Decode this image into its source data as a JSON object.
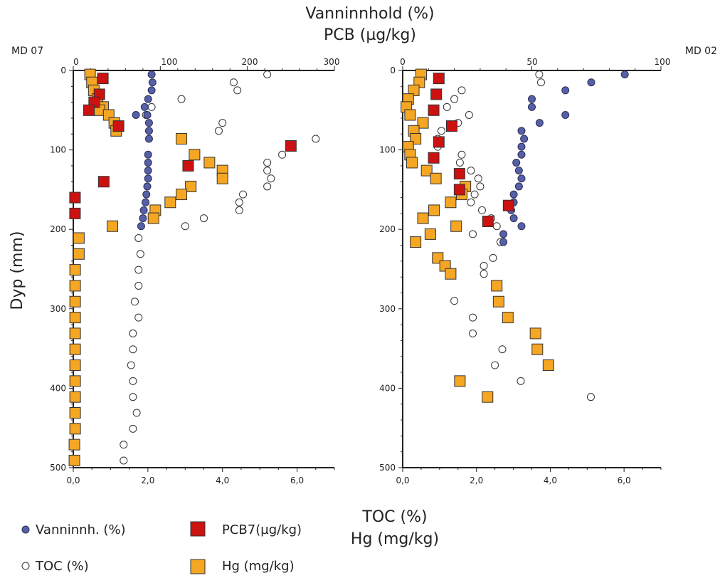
{
  "figure": {
    "top_title_1": "Vanninnhold (%)",
    "top_title_2": "PCB (µg/kg)",
    "bottom_title_1": "TOC (%)",
    "bottom_title_2": "Hg (mg/kg)",
    "ylabel": "Dyp (mm)"
  },
  "legend": [
    {
      "label": "Vanninnh. (%)",
      "marker": "filled-circle",
      "color": "#5560a8"
    },
    {
      "label": "TOC (%)",
      "marker": "open-circle",
      "color": "#ffffff"
    },
    {
      "label": "PCB7(µg/kg)",
      "marker": "square",
      "color": "#cc1111"
    },
    {
      "label": "Hg (mg/kg)",
      "marker": "square",
      "color": "#f5a623"
    }
  ],
  "colors": {
    "vann": "#5560a8",
    "toc": "#ffffff",
    "pcb": "#cc1111",
    "hg": "#f5a623"
  },
  "chart_data": [
    {
      "type": "scatter",
      "site": "MD 07",
      "ylabel": "Dyp (mm)",
      "ylim": [
        500,
        0
      ],
      "y_ticks": [
        "0",
        "100",
        "200",
        "300",
        "400",
        "500"
      ],
      "top_axis": {
        "range": [
          0,
          300
        ],
        "ticks": [
          "0",
          "100",
          "200",
          "300"
        ]
      },
      "bottom_axis": {
        "range": [
          0,
          7
        ],
        "ticks": [
          "0,0",
          "2,0",
          "4,0",
          "6,0"
        ]
      },
      "series": [
        {
          "name": "Vanninnh. (%)",
          "axis": "top",
          "points": [
            [
              90,
              5
            ],
            [
              91,
              15
            ],
            [
              90,
              25
            ],
            [
              86,
              36
            ],
            [
              82,
              46
            ],
            [
              72,
              56
            ],
            [
              85,
              56
            ],
            [
              87,
              66
            ],
            [
              87,
              76
            ],
            [
              87,
              86
            ],
            [
              86,
              106
            ],
            [
              86,
              116
            ],
            [
              86,
              126
            ],
            [
              86,
              136
            ],
            [
              85,
              146
            ],
            [
              84,
              156
            ],
            [
              83,
              166
            ],
            [
              81,
              176
            ],
            [
              80,
              186
            ],
            [
              78,
              196
            ]
          ]
        },
        {
          "name": "TOC (%)",
          "axis": "bottom",
          "points": [
            [
              5.2,
              5
            ],
            [
              4.3,
              15
            ],
            [
              4.4,
              25
            ],
            [
              2.9,
              36
            ],
            [
              2.1,
              46
            ],
            [
              1.95,
              56
            ],
            [
              4.0,
              66
            ],
            [
              3.9,
              76
            ],
            [
              6.5,
              86
            ],
            [
              5.6,
              106
            ],
            [
              5.2,
              116
            ],
            [
              5.2,
              126
            ],
            [
              5.3,
              136
            ],
            [
              5.2,
              146
            ],
            [
              4.55,
              156
            ],
            [
              4.45,
              166
            ],
            [
              4.45,
              176
            ],
            [
              3.5,
              186
            ],
            [
              3.0,
              196
            ],
            [
              1.75,
              211
            ],
            [
              1.8,
              231
            ],
            [
              1.75,
              251
            ],
            [
              1.75,
              271
            ],
            [
              1.65,
              291
            ],
            [
              1.75,
              311
            ],
            [
              1.6,
              331
            ],
            [
              1.6,
              351
            ],
            [
              1.55,
              371
            ],
            [
              1.6,
              391
            ],
            [
              1.6,
              411
            ],
            [
              1.7,
              431
            ],
            [
              1.6,
              451
            ],
            [
              1.35,
              471
            ],
            [
              1.35,
              491
            ]
          ]
        },
        {
          "name": "Hg (mg/kg)",
          "axis": "bottom",
          "points": [
            [
              0.45,
              5
            ],
            [
              0.5,
              15
            ],
            [
              0.55,
              25
            ],
            [
              0.65,
              36
            ],
            [
              0.8,
              46
            ],
            [
              0.7,
              50
            ],
            [
              0.95,
              56
            ],
            [
              1.1,
              66
            ],
            [
              1.15,
              76
            ],
            [
              2.9,
              86
            ],
            [
              3.25,
              106
            ],
            [
              3.65,
              116
            ],
            [
              4.0,
              126
            ],
            [
              4.0,
              136
            ],
            [
              3.15,
              146
            ],
            [
              2.9,
              156
            ],
            [
              2.6,
              166
            ],
            [
              2.2,
              176
            ],
            [
              2.15,
              186
            ],
            [
              1.05,
              196
            ],
            [
              0.15,
              211
            ],
            [
              0.15,
              231
            ],
            [
              0.05,
              251
            ],
            [
              0.05,
              271
            ],
            [
              0.05,
              291
            ],
            [
              0.05,
              311
            ],
            [
              0.05,
              331
            ],
            [
              0.05,
              351
            ],
            [
              0.05,
              371
            ],
            [
              0.05,
              391
            ],
            [
              0.05,
              411
            ],
            [
              0.05,
              431
            ],
            [
              0.05,
              451
            ],
            [
              0.03,
              471
            ],
            [
              0.03,
              491
            ]
          ]
        },
        {
          "name": "PCB7(µg/kg)",
          "axis": "top",
          "points": [
            [
              34,
              10
            ],
            [
              30,
              30
            ],
            [
              24,
              40
            ],
            [
              18,
              50
            ],
            [
              52,
              70
            ],
            [
              250,
              95
            ],
            [
              132,
              120
            ],
            [
              35,
              140
            ],
            [
              2,
              160
            ],
            [
              2,
              180
            ]
          ]
        }
      ]
    },
    {
      "type": "scatter",
      "site": "MD 02",
      "ylabel": "",
      "ylim": [
        500,
        0
      ],
      "y_ticks": [
        "0",
        "100",
        "200",
        "300",
        "400",
        "500"
      ],
      "top_axis": {
        "range": [
          0,
          100
        ],
        "ticks": [
          "0",
          "50",
          "100"
        ]
      },
      "bottom_axis": {
        "range": [
          0,
          7
        ],
        "ticks": [
          "0,0",
          "2,0",
          "4,0",
          "6,0"
        ]
      },
      "series": [
        {
          "name": "Vanninnh. (%)",
          "axis": "top",
          "points": [
            [
              86,
              5
            ],
            [
              73,
              15
            ],
            [
              63,
              25
            ],
            [
              50,
              36
            ],
            [
              50,
              46
            ],
            [
              63,
              56
            ],
            [
              53,
              66
            ],
            [
              46,
              76
            ],
            [
              47,
              86
            ],
            [
              46,
              96
            ],
            [
              46,
              106
            ],
            [
              44,
              116
            ],
            [
              45,
              126
            ],
            [
              46,
              136
            ],
            [
              45,
              146
            ],
            [
              43,
              156
            ],
            [
              43,
              166
            ],
            [
              42,
              176
            ],
            [
              43,
              186
            ],
            [
              46,
              196
            ],
            [
              39,
              206
            ],
            [
              39,
              216
            ]
          ]
        },
        {
          "name": "TOC (%)",
          "axis": "bottom",
          "points": [
            [
              3.7,
              5
            ],
            [
              3.75,
              15
            ],
            [
              1.6,
              25
            ],
            [
              1.4,
              36
            ],
            [
              1.2,
              46
            ],
            [
              1.8,
              56
            ],
            [
              1.5,
              66
            ],
            [
              1.05,
              76
            ],
            [
              0.95,
              86
            ],
            [
              0.95,
              96
            ],
            [
              1.6,
              106
            ],
            [
              1.55,
              116
            ],
            [
              1.85,
              126
            ],
            [
              2.05,
              136
            ],
            [
              2.1,
              146
            ],
            [
              1.95,
              156
            ],
            [
              1.85,
              166
            ],
            [
              2.15,
              176
            ],
            [
              2.4,
              186
            ],
            [
              2.55,
              196
            ],
            [
              1.9,
              206
            ],
            [
              2.65,
              216
            ],
            [
              2.45,
              236
            ],
            [
              2.2,
              246
            ],
            [
              2.2,
              256
            ],
            [
              1.4,
              290
            ],
            [
              1.9,
              311
            ],
            [
              1.9,
              331
            ],
            [
              2.7,
              351
            ],
            [
              2.5,
              371
            ],
            [
              3.2,
              391
            ],
            [
              5.1,
              411
            ]
          ]
        },
        {
          "name": "Hg (mg/kg)",
          "axis": "bottom",
          "points": [
            [
              0.5,
              5
            ],
            [
              0.45,
              15
            ],
            [
              0.3,
              25
            ],
            [
              0.15,
              36
            ],
            [
              0.1,
              46
            ],
            [
              0.2,
              56
            ],
            [
              0.55,
              66
            ],
            [
              0.3,
              76
            ],
            [
              0.35,
              86
            ],
            [
              0.15,
              96
            ],
            [
              0.2,
              106
            ],
            [
              0.25,
              116
            ],
            [
              0.65,
              126
            ],
            [
              0.9,
              136
            ],
            [
              1.7,
              146
            ],
            [
              1.6,
              156
            ],
            [
              1.3,
              166
            ],
            [
              0.85,
              176
            ],
            [
              0.55,
              186
            ],
            [
              1.45,
              196
            ],
            [
              0.75,
              206
            ],
            [
              0.35,
              216
            ],
            [
              0.95,
              236
            ],
            [
              1.15,
              246
            ],
            [
              1.3,
              256
            ],
            [
              2.55,
              271
            ],
            [
              2.6,
              291
            ],
            [
              2.85,
              311
            ],
            [
              3.6,
              331
            ],
            [
              3.65,
              351
            ],
            [
              3.95,
              371
            ],
            [
              1.55,
              391
            ],
            [
              2.3,
              411
            ]
          ]
        },
        {
          "name": "PCB7(µg/kg)",
          "axis": "top",
          "points": [
            [
              14,
              10
            ],
            [
              13,
              30
            ],
            [
              12,
              50
            ],
            [
              19,
              70
            ],
            [
              14,
              90
            ],
            [
              12,
              110
            ],
            [
              22,
              130
            ],
            [
              22,
              150
            ],
            [
              41,
              170
            ],
            [
              33,
              190
            ]
          ]
        }
      ]
    }
  ]
}
